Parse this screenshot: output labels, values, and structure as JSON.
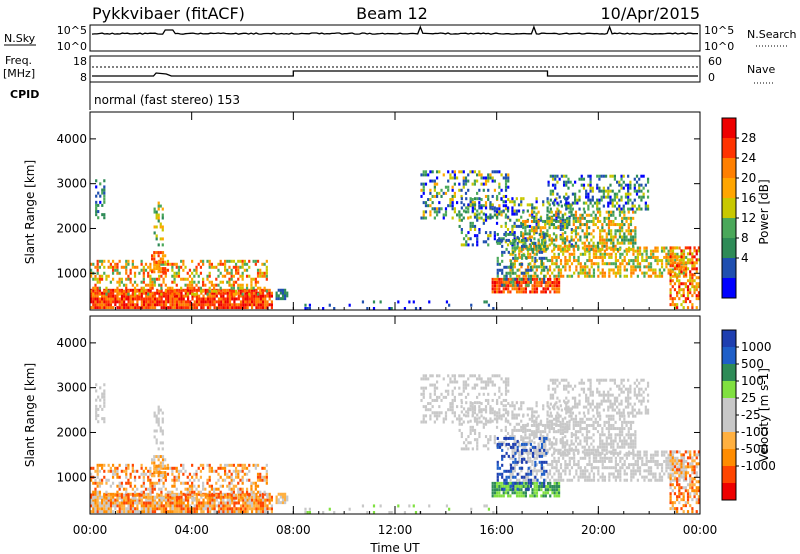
{
  "header": {
    "title_left": "Pykkvibaer (fitACF)",
    "title_center": "Beam 12",
    "title_right": "10/Apr/2015"
  },
  "panels": {
    "nsky": {
      "label": "N.Sky",
      "right_label": "N.Search",
      "yticks_left": [
        "10^5",
        "10^0"
      ],
      "yticks_right": [
        "10^5",
        "10^0"
      ]
    },
    "freq": {
      "label_line1": "Freq.",
      "label_line2": "[MHz]",
      "right_label": "Nave",
      "yticks_left": [
        "18",
        "8"
      ],
      "yticks_right": [
        "60",
        "0"
      ]
    },
    "cpid": {
      "label": "CPID",
      "text": "normal (fast stereo) 153"
    }
  },
  "colors": {
    "power": [
      "#0000ff",
      "#1f4fb0",
      "#2e8b57",
      "#4aa85a",
      "#c8c800",
      "#ffa500",
      "#ff7f00",
      "#ff3300",
      "#ee0000"
    ],
    "velocity": [
      "#ee0000",
      "#ff4500",
      "#ff8c00",
      "#ffb040",
      "#c8c8c8",
      "#c8c8c8",
      "#80e040",
      "#2e8b57",
      "#1f5fc8",
      "#1f3fb0"
    ]
  },
  "chart_data": [
    {
      "type": "heatmap",
      "name": "power-panel",
      "ylabel": "Slant Range [km]",
      "ylim": [
        180,
        4600
      ],
      "yticks": [
        1000,
        2000,
        3000,
        4000
      ],
      "xlim": [
        0,
        24
      ],
      "xticks": [
        "00:00",
        "04:00",
        "08:00",
        "12:00",
        "16:00",
        "20:00",
        "00:00"
      ],
      "colorbar": {
        "label": "Power [dB]",
        "ticks": [
          "28",
          "24",
          "20",
          "16",
          "12",
          "8",
          "4"
        ]
      }
    },
    {
      "type": "heatmap",
      "name": "velocity-panel",
      "ylabel": "Slant Range [km]",
      "ylim": [
        180,
        4600
      ],
      "yticks": [
        1000,
        2000,
        3000,
        4000
      ],
      "xlim": [
        0,
        24
      ],
      "xticks": [
        "00:00",
        "04:00",
        "08:00",
        "12:00",
        "16:00",
        "20:00",
        "00:00"
      ],
      "xlabel": "Time UT",
      "colorbar": {
        "label": "Velocity [m s-1]",
        "ticks": [
          "1000",
          "500",
          "100",
          "25",
          "-25",
          "-100",
          "-500",
          "-1000"
        ]
      }
    }
  ]
}
